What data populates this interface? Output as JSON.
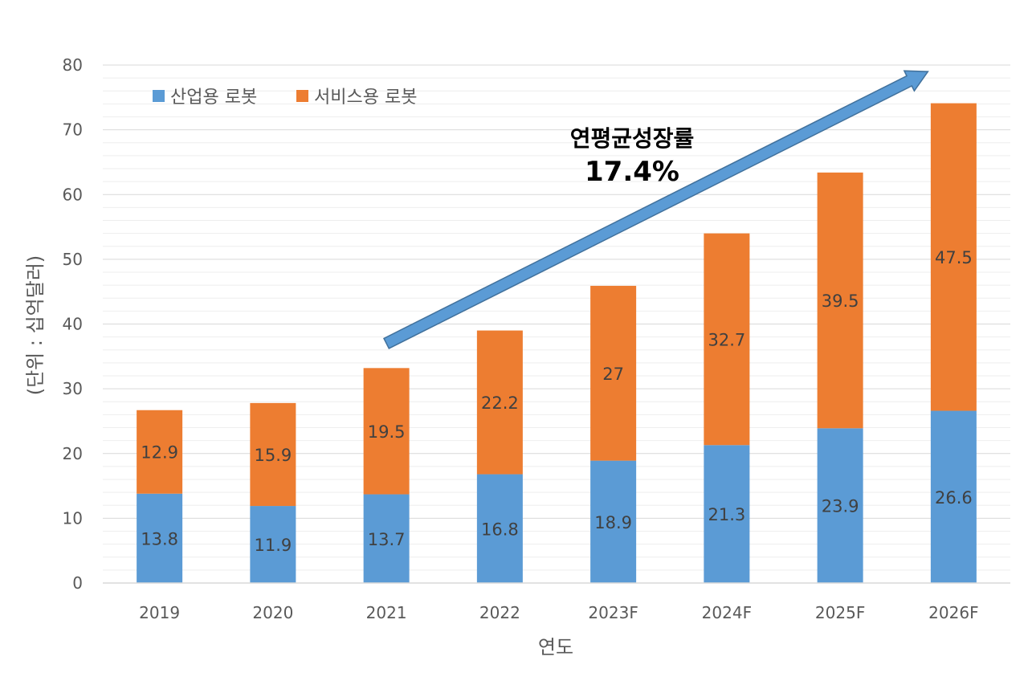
{
  "chart_data": {
    "type": "bar",
    "stacked": true,
    "categories": [
      "2019",
      "2020",
      "2021",
      "2022",
      "2023F",
      "2024F",
      "2025F",
      "2026F"
    ],
    "series": [
      {
        "name": "산업용 로봇",
        "color": "#5B9BD5",
        "values": [
          13.8,
          11.9,
          13.7,
          16.8,
          18.9,
          21.3,
          23.9,
          26.6
        ]
      },
      {
        "name": "서비스용 로봇",
        "color": "#ED7D31",
        "values": [
          12.9,
          15.9,
          19.5,
          22.2,
          27,
          32.7,
          39.5,
          47.5
        ]
      }
    ],
    "xlabel": "연도",
    "ylabel": "(단위 : 십억달러)",
    "ylim": [
      0,
      80
    ],
    "yticks": [
      0,
      10,
      20,
      30,
      40,
      50,
      60,
      70,
      80
    ],
    "grid": true,
    "legend_position": "top-left",
    "annotation": {
      "line1": "연평균성장률",
      "line2": "17.4%",
      "arrow_color": "#5B9BD5",
      "arrow_from": {
        "category": "2021",
        "value": 37
      },
      "arrow_to": {
        "category": "2026F",
        "value": 79
      }
    }
  }
}
